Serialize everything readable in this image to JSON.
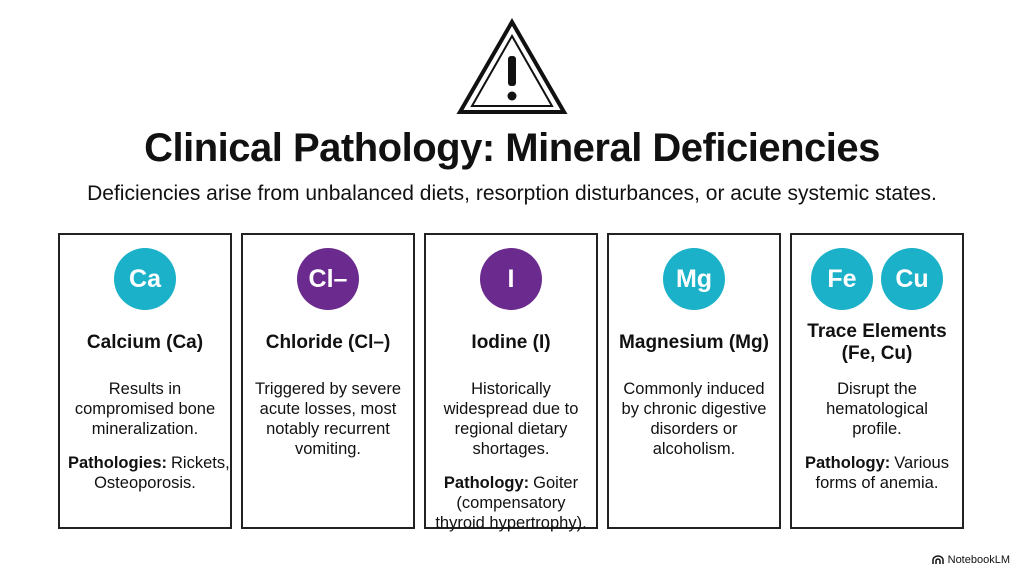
{
  "header": {
    "title": "Clinical Pathology: Mineral Deficiencies",
    "subtitle": "Deficiencies arise from unbalanced diets, resorption disturbances, or acute systemic states."
  },
  "cards": [
    {
      "badges": [
        {
          "text": "Ca",
          "color": "#1bb1c9"
        }
      ],
      "name": "Calcium (Ca)",
      "description": "Results in compromised bone mineralization.",
      "pathology_label": "Pathologies:",
      "pathology": "Rickets, Osteoporosis."
    },
    {
      "badges": [
        {
          "text": "Cl–",
          "color": "#6b2b8e"
        }
      ],
      "name": "Chloride (Cl–)",
      "description": "Triggered by severe acute losses, most notably recurrent vomiting."
    },
    {
      "badges": [
        {
          "text": "I",
          "color": "#6b2b8e"
        }
      ],
      "name": "Iodine (I)",
      "description": "Historically widespread due to regional dietary shortages.",
      "pathology_label": "Pathology:",
      "pathology": "Goiter (compensatory thyroid hypertrophy)."
    },
    {
      "badges": [
        {
          "text": "Mg",
          "color": "#1bb1c9"
        }
      ],
      "name": "Magnesium (Mg)",
      "description": "Commonly induced by chronic digestive disorders or alcoholism."
    },
    {
      "badges": [
        {
          "text": "Fe",
          "color": "#1bb1c9"
        },
        {
          "text": "Cu",
          "color": "#1bb1c9"
        }
      ],
      "name": "Trace Elements (Fe, Cu)",
      "description": "Disrupt the hematological profile.",
      "pathology_label": "Pathology:",
      "pathology": "Various forms of anemia."
    }
  ],
  "footer": {
    "brand": "NotebookLM"
  }
}
